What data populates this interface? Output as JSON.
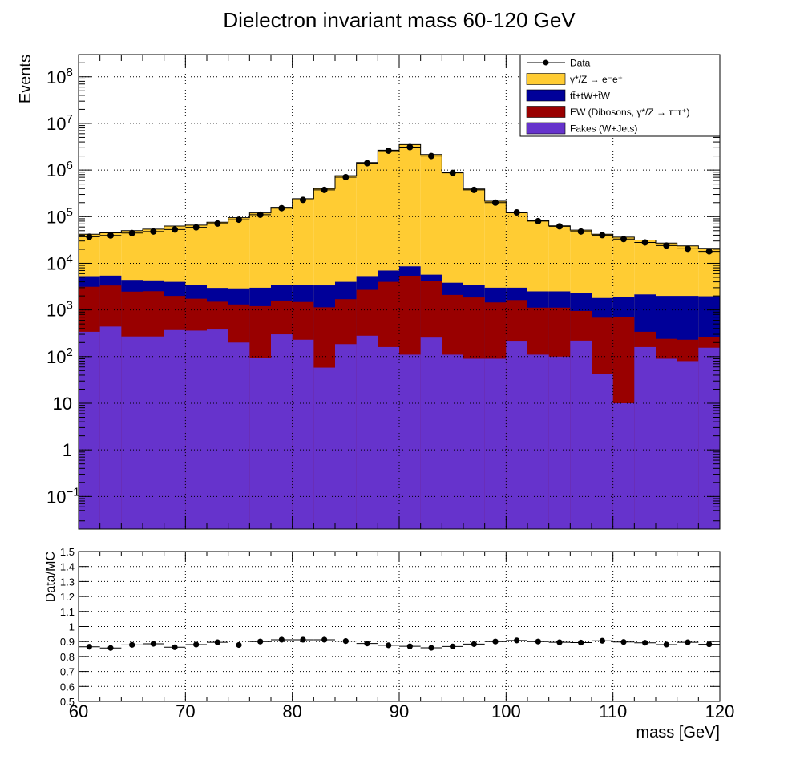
{
  "chart_data": [
    {
      "type": "area",
      "title": "Dielectron invariant mass 60-120 GeV",
      "ylabel": "Events",
      "xlabel": "",
      "xlim": [
        60,
        120
      ],
      "ylim_log": true,
      "y_range": [
        0.02,
        300000000
      ],
      "y_ticks": [
        "10^-1",
        "1",
        "10",
        "10^2",
        "10^3",
        "10^4",
        "10^5",
        "10^6",
        "10^7",
        "10^8"
      ],
      "grid": true,
      "legend_position": "top-right",
      "bin_edges": [
        60,
        62,
        64,
        66,
        68,
        70,
        72,
        74,
        76,
        78,
        80,
        82,
        84,
        86,
        88,
        90,
        92,
        94,
        96,
        98,
        100,
        102,
        104,
        106,
        108,
        110,
        112,
        114,
        116,
        118,
        120
      ],
      "series": [
        {
          "name": "Fakes (W+Jets)",
          "color": "#6633cc",
          "values": [
            340,
            440,
            270,
            270,
            370,
            360,
            380,
            200,
            95,
            300,
            230,
            58,
            185,
            280,
            160,
            110,
            255,
            110,
            90,
            90,
            210,
            110,
            100,
            220,
            42,
            10,
            160,
            90,
            80,
            155
          ]
        },
        {
          "name": "EW (Dibosons, γ*/Z → τ⁻τ⁺)",
          "color": "#990000",
          "values": [
            2800,
            2900,
            2200,
            2250,
            1630,
            1380,
            1120,
            1110,
            1110,
            1290,
            1250,
            1080,
            1515,
            2420,
            3840,
            5300,
            3950,
            1990,
            1760,
            1360,
            1420,
            1010,
            1020,
            730,
            640,
            700,
            180,
            150,
            150,
            110
          ]
        },
        {
          "name": "tt̄+tW+t̄W",
          "color": "#000099",
          "values": [
            2160,
            2100,
            1930,
            1780,
            2000,
            1630,
            1470,
            1590,
            1790,
            1810,
            2000,
            2220,
            2300,
            2620,
            3000,
            3190,
            1500,
            1730,
            1590,
            1550,
            1370,
            1380,
            1380,
            1350,
            1120,
            1200,
            1810,
            1760,
            1770,
            1700
          ]
        },
        {
          "name": "γ*/Z → e⁻e⁺",
          "color": "#ffcc33",
          "values": [
            36700,
            39500,
            45600,
            49700,
            59000,
            62300,
            73000,
            91700,
            117000,
            155000,
            239000,
            397000,
            754000,
            1440000,
            2650000,
            3500000,
            2150000,
            877000,
            388000,
            212000,
            118000,
            80200,
            61000,
            49000,
            40200,
            34400,
            29300,
            25100,
            21600,
            19000
          ]
        },
        {
          "name": "Data",
          "color": "#000000",
          "values": [
            37000,
            39500,
            44500,
            48000,
            53000,
            59000,
            71000,
            86000,
            110000,
            152000,
            229000,
            375000,
            705000,
            1400000,
            2600000,
            3100000,
            2000000,
            870000,
            375000,
            200000,
            123000,
            80000,
            62000,
            48000,
            40000,
            33000,
            28000,
            24000,
            20500,
            18000
          ]
        }
      ]
    },
    {
      "type": "scatter",
      "title": "",
      "ylabel": "Data/MC",
      "xlabel": "mass [GeV]",
      "xlim": [
        60,
        120
      ],
      "ylim": [
        0.5,
        1.5
      ],
      "x_ticks": [
        60,
        70,
        80,
        90,
        100,
        110,
        120
      ],
      "y_ticks": [
        "0.5",
        "0.6",
        "0.7",
        "0.8",
        "0.9",
        "1",
        "1.1",
        "1.2",
        "1.3",
        "1.4",
        "1.5"
      ],
      "grid": true,
      "x": [
        61,
        63,
        65,
        67,
        69,
        71,
        73,
        75,
        77,
        79,
        81,
        83,
        85,
        87,
        89,
        91,
        93,
        95,
        97,
        99,
        101,
        103,
        105,
        107,
        109,
        111,
        113,
        115,
        117,
        119
      ],
      "values": [
        0.865,
        0.857,
        0.878,
        0.885,
        0.862,
        0.88,
        0.895,
        0.877,
        0.9,
        0.912,
        0.912,
        0.912,
        0.903,
        0.887,
        0.875,
        0.868,
        0.858,
        0.867,
        0.883,
        0.9,
        0.907,
        0.9,
        0.895,
        0.893,
        0.905,
        0.897,
        0.892,
        0.88,
        0.895,
        0.882
      ]
    }
  ]
}
